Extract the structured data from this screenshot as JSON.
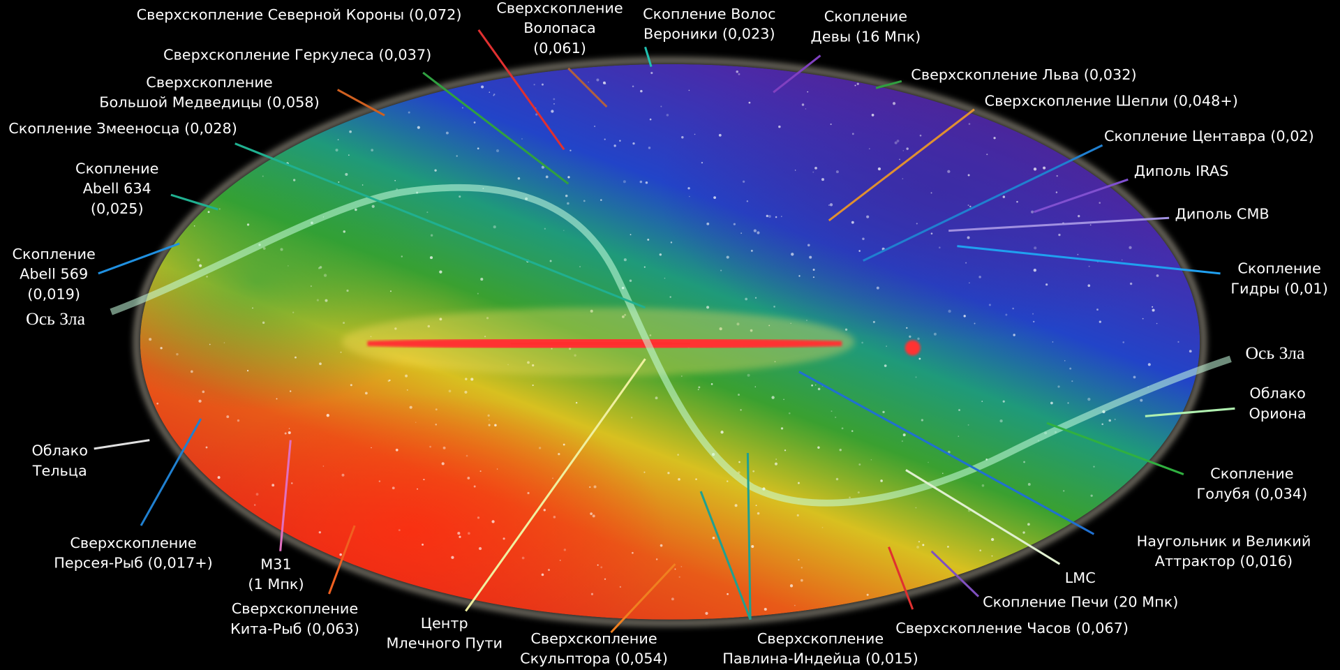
{
  "labels": [
    {
      "lines": [
        "Сверхскопление Северной Короны (0,072)"
      ]
    },
    {
      "lines": [
        "Сверхскопление",
        "Волопаса",
        "(0,061)"
      ]
    },
    {
      "lines": [
        "Скопление Волос",
        "Вероники (0,023)"
      ]
    },
    {
      "lines": [
        "Скопление",
        "Девы (16 Мпк)"
      ]
    },
    {
      "lines": [
        "Сверхскопление Геркулеса (0,037)"
      ]
    },
    {
      "lines": [
        "Сверхскопление Льва (0,032)"
      ]
    },
    {
      "lines": [
        "Сверхскопление",
        "Большой Медведицы (0,058)"
      ]
    },
    {
      "lines": [
        "Сверхскопление Шепли (0,048+)"
      ]
    },
    {
      "lines": [
        "Скопление Змееносца (0,028)"
      ]
    },
    {
      "lines": [
        "Скопление Центавра (0,02)"
      ]
    },
    {
      "lines": [
        "Скопление",
        "Abell 634",
        "(0,025)"
      ]
    },
    {
      "lines": [
        "Диполь IRAS"
      ]
    },
    {
      "lines": [
        "Диполь CMB"
      ]
    },
    {
      "lines": [
        "Скопление",
        "Abell 569",
        "(0,019)"
      ]
    },
    {
      "lines": [
        "Скопление",
        "Гидры (0,01)"
      ]
    },
    {
      "lines": [
        "Облако",
        "Ориона"
      ]
    },
    {
      "lines": [
        "Облако",
        "Тельца"
      ]
    },
    {
      "lines": [
        "Скопление",
        "Голубя (0,034)"
      ]
    },
    {
      "lines": [
        "Сверхскопление",
        "Персея-Рыб (0,017+)"
      ]
    },
    {
      "lines": [
        "Наугольник и Великий",
        "Аттрактор (0,016)"
      ]
    },
    {
      "lines": [
        "М31",
        "(1 Мпк)"
      ]
    },
    {
      "lines": [
        "LMC"
      ]
    },
    {
      "lines": [
        "Сверхскопление",
        "Кита-Рыб (0,063)"
      ]
    },
    {
      "lines": [
        "Скопление Печи (20 Мпк)"
      ]
    },
    {
      "lines": [
        "Центр",
        "Млечного Пути"
      ]
    },
    {
      "lines": [
        "Сверхскопление Часов (0,067)"
      ]
    },
    {
      "lines": [
        "Сверхскопление",
        "Скульптора (0,054)"
      ]
    },
    {
      "lines": [
        "Сверхскопление",
        "Павлина-Индейца (0,015)"
      ]
    }
  ],
  "axis_labels": [
    "Ось Зла",
    "Ось Зла"
  ]
}
